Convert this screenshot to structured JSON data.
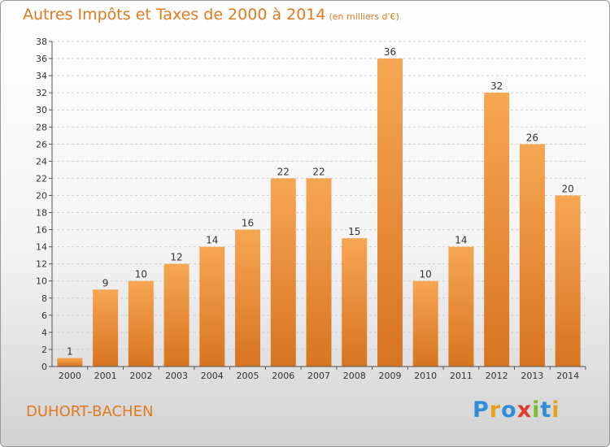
{
  "title": "Autres Impôts et Taxes de 2000 à 2014",
  "unit": "(en milliers d'€)",
  "commune": "DUHORT-BACHEN",
  "brand": {
    "text": "Proxiti",
    "letters": [
      {
        "ch": "P",
        "color": "#2e8fd8"
      },
      {
        "ch": "r",
        "color": "#e8a21c"
      },
      {
        "ch": "o",
        "color": "#2e8fd8"
      },
      {
        "ch": "x",
        "color": "#e03a2c"
      },
      {
        "ch": "i",
        "color": "#7cbb2a"
      },
      {
        "ch": "t",
        "color": "#2e8fd8"
      },
      {
        "ch": "i",
        "color": "#e8a21c"
      }
    ]
  },
  "colors": {
    "accent": "#e07a1f",
    "bar_light": "#f6a652",
    "bar_dark": "#d87420",
    "grid": "#cfcfcf"
  },
  "chart_data": {
    "type": "bar",
    "title": "Autres Impôts et Taxes de 2000 à 2014",
    "subtitle": "(en milliers d'€)",
    "categories": [
      "2000",
      "2001",
      "2002",
      "2003",
      "2004",
      "2005",
      "2006",
      "2007",
      "2008",
      "2009",
      "2010",
      "2011",
      "2012",
      "2013",
      "2014"
    ],
    "values": [
      1,
      9,
      10,
      12,
      14,
      16,
      22,
      22,
      15,
      36,
      10,
      14,
      32,
      26,
      20
    ],
    "ylim": [
      0,
      38
    ],
    "yticks": [
      0,
      2,
      4,
      6,
      8,
      10,
      12,
      14,
      16,
      18,
      20,
      22,
      24,
      26,
      28,
      30,
      32,
      34,
      36,
      38
    ],
    "grid": "horizontal dashed",
    "legend": "none"
  }
}
